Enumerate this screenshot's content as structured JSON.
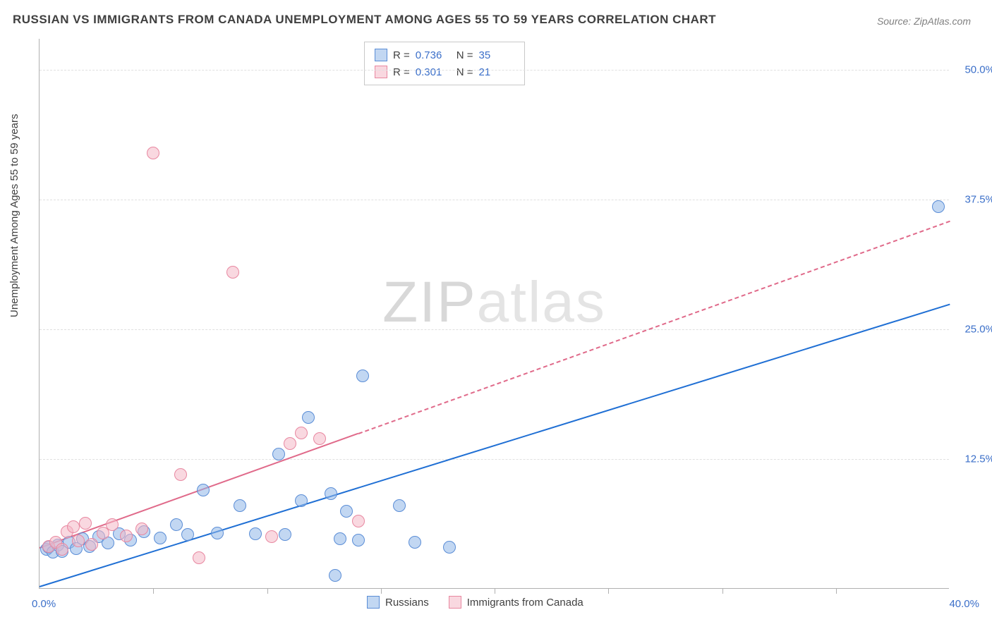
{
  "title": "RUSSIAN VS IMMIGRANTS FROM CANADA UNEMPLOYMENT AMONG AGES 55 TO 59 YEARS CORRELATION CHART",
  "source": "Source: ZipAtlas.com",
  "ylabel": "Unemployment Among Ages 55 to 59 years",
  "watermark_a": "ZIP",
  "watermark_b": "atlas",
  "chart": {
    "type": "scatter",
    "xlim": [
      0,
      40
    ],
    "ylim": [
      0,
      53
    ],
    "x_min_label": "0.0%",
    "x_max_label": "40.0%",
    "y_ticks": [
      {
        "v": 12.5,
        "label": "12.5%"
      },
      {
        "v": 25.0,
        "label": "25.0%"
      },
      {
        "v": 37.5,
        "label": "37.5%"
      },
      {
        "v": 50.0,
        "label": "50.0%"
      }
    ],
    "x_tick_step": 5,
    "background_color": "#ffffff",
    "grid_color": "#e0e0e0",
    "axis_color": "#b0b0b0",
    "label_color_blue": "#3b6fc9",
    "marker_radius": 9,
    "marker_border": 1,
    "series": [
      {
        "name": "Russians",
        "color_fill": "#90b6e8",
        "color_fill_alpha": "rgba(144,182,232,0.55)",
        "color_stroke": "#5a8dd6",
        "trend": {
          "color": "#1f6fd4",
          "width": 2.5,
          "x1": 0,
          "y1": 0.3,
          "x2": 40,
          "y2": 27.5,
          "dash_from_x": null
        },
        "r_value": "0.736",
        "n_value": "35",
        "points": [
          [
            0.3,
            3.8
          ],
          [
            0.4,
            4.0
          ],
          [
            0.6,
            3.5
          ],
          [
            0.8,
            4.2
          ],
          [
            1.0,
            3.6
          ],
          [
            1.3,
            4.5
          ],
          [
            1.6,
            3.9
          ],
          [
            1.9,
            4.8
          ],
          [
            2.2,
            4.1
          ],
          [
            2.6,
            5.0
          ],
          [
            3.0,
            4.4
          ],
          [
            3.5,
            5.3
          ],
          [
            4.0,
            4.7
          ],
          [
            4.6,
            5.5
          ],
          [
            5.3,
            4.9
          ],
          [
            6.0,
            6.2
          ],
          [
            6.5,
            5.2
          ],
          [
            7.2,
            9.5
          ],
          [
            7.8,
            5.4
          ],
          [
            8.8,
            8.0
          ],
          [
            9.5,
            5.3
          ],
          [
            10.5,
            13.0
          ],
          [
            10.8,
            5.2
          ],
          [
            11.5,
            8.5
          ],
          [
            11.8,
            16.5
          ],
          [
            12.8,
            9.2
          ],
          [
            13.0,
            1.3
          ],
          [
            13.2,
            4.8
          ],
          [
            13.5,
            7.5
          ],
          [
            14.0,
            4.7
          ],
          [
            14.2,
            20.5
          ],
          [
            15.8,
            8.0
          ],
          [
            16.5,
            4.5
          ],
          [
            18.0,
            4.0
          ],
          [
            39.5,
            36.8
          ]
        ]
      },
      {
        "name": "Immigrants from Canada",
        "color_fill": "#f4b8c6",
        "color_fill_alpha": "rgba(244,184,198,0.55)",
        "color_stroke": "#e887a0",
        "trend": {
          "color": "#e06a8a",
          "width": 2,
          "x1": 0,
          "y1": 4.0,
          "x2": 40,
          "y2": 35.5,
          "dash_from_x": 14
        },
        "r_value": "0.301",
        "n_value": "21",
        "points": [
          [
            0.4,
            4.1
          ],
          [
            0.7,
            4.5
          ],
          [
            1.0,
            3.8
          ],
          [
            1.2,
            5.5
          ],
          [
            1.5,
            6.0
          ],
          [
            1.7,
            4.6
          ],
          [
            2.0,
            6.3
          ],
          [
            2.3,
            4.3
          ],
          [
            2.8,
            5.4
          ],
          [
            3.2,
            6.2
          ],
          [
            3.8,
            5.1
          ],
          [
            4.5,
            5.8
          ],
          [
            5.0,
            42.0
          ],
          [
            6.2,
            11.0
          ],
          [
            7.0,
            3.0
          ],
          [
            8.5,
            30.5
          ],
          [
            10.2,
            5.0
          ],
          [
            11.0,
            14.0
          ],
          [
            11.5,
            15.0
          ],
          [
            12.3,
            14.5
          ],
          [
            14.0,
            6.5
          ]
        ]
      }
    ]
  },
  "legend_top": {
    "r_label": "R =",
    "n_label": "N ="
  },
  "legend_bottom": {
    "series1": "Russians",
    "series2": "Immigrants from Canada"
  }
}
